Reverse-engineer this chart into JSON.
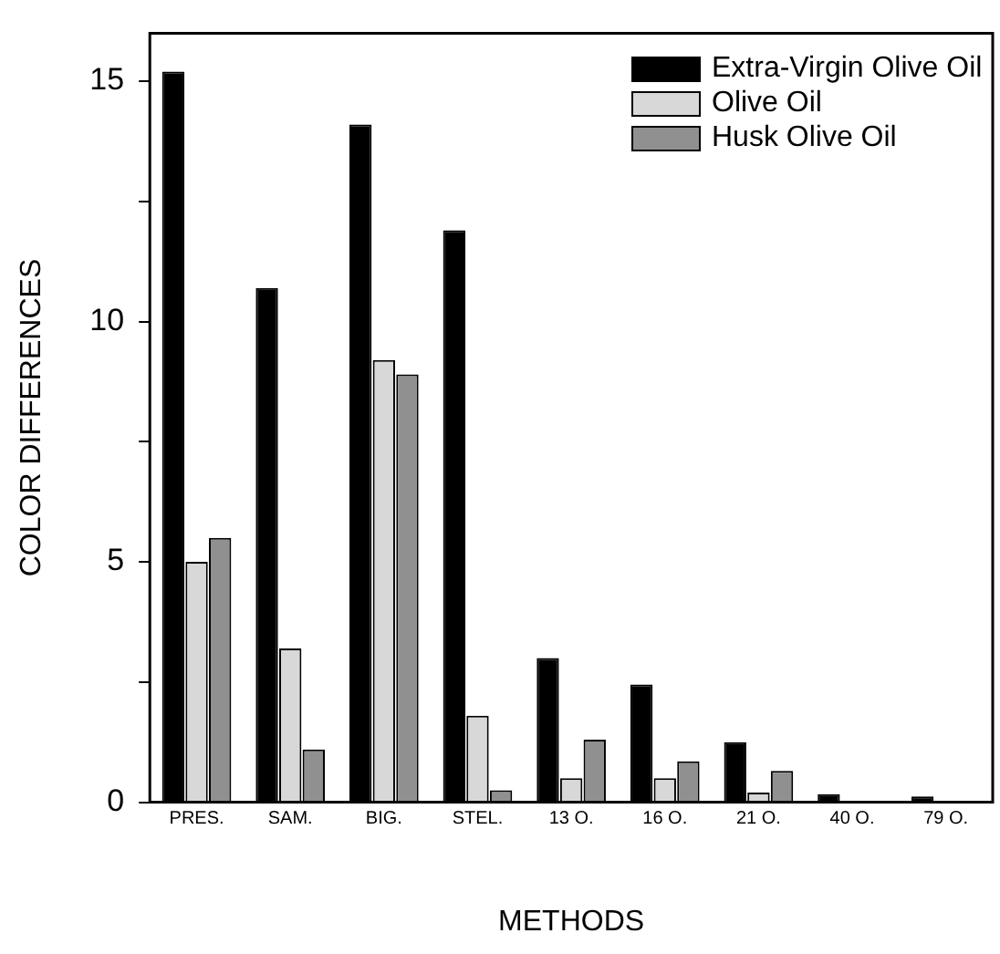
{
  "chart_data": {
    "type": "bar",
    "xlabel": "METHODS",
    "ylabel": "COLOR DIFFERENCES",
    "categories": [
      "PRES.",
      "SAM.",
      "BIG.",
      "STEL.",
      "13 O.",
      "16 O.",
      "21 O.",
      "40 O.",
      "79 O."
    ],
    "series": [
      {
        "name": "Extra-Virgin Olive Oil",
        "color": "#000000",
        "values": [
          15.2,
          10.7,
          14.1,
          11.9,
          3.0,
          2.45,
          1.25,
          0.17,
          0.12
        ]
      },
      {
        "name": "Olive Oil",
        "color": "#d8d8d8",
        "values": [
          5.0,
          3.2,
          9.2,
          1.8,
          0.5,
          0.5,
          0.2,
          0.03,
          0.02
        ]
      },
      {
        "name": "Husk Olive Oil",
        "color": "#909090",
        "values": [
          5.5,
          1.1,
          8.9,
          0.25,
          1.3,
          0.85,
          0.65,
          0,
          0
        ]
      }
    ],
    "ylim": [
      0,
      16
    ],
    "yticks": [
      0,
      {
        "value": 2.5,
        "label": null
      },
      5,
      {
        "value": 7.5,
        "label": null
      },
      10,
      {
        "value": 12.5,
        "label": null
      },
      15
    ],
    "grid": false,
    "legend": "top right"
  }
}
